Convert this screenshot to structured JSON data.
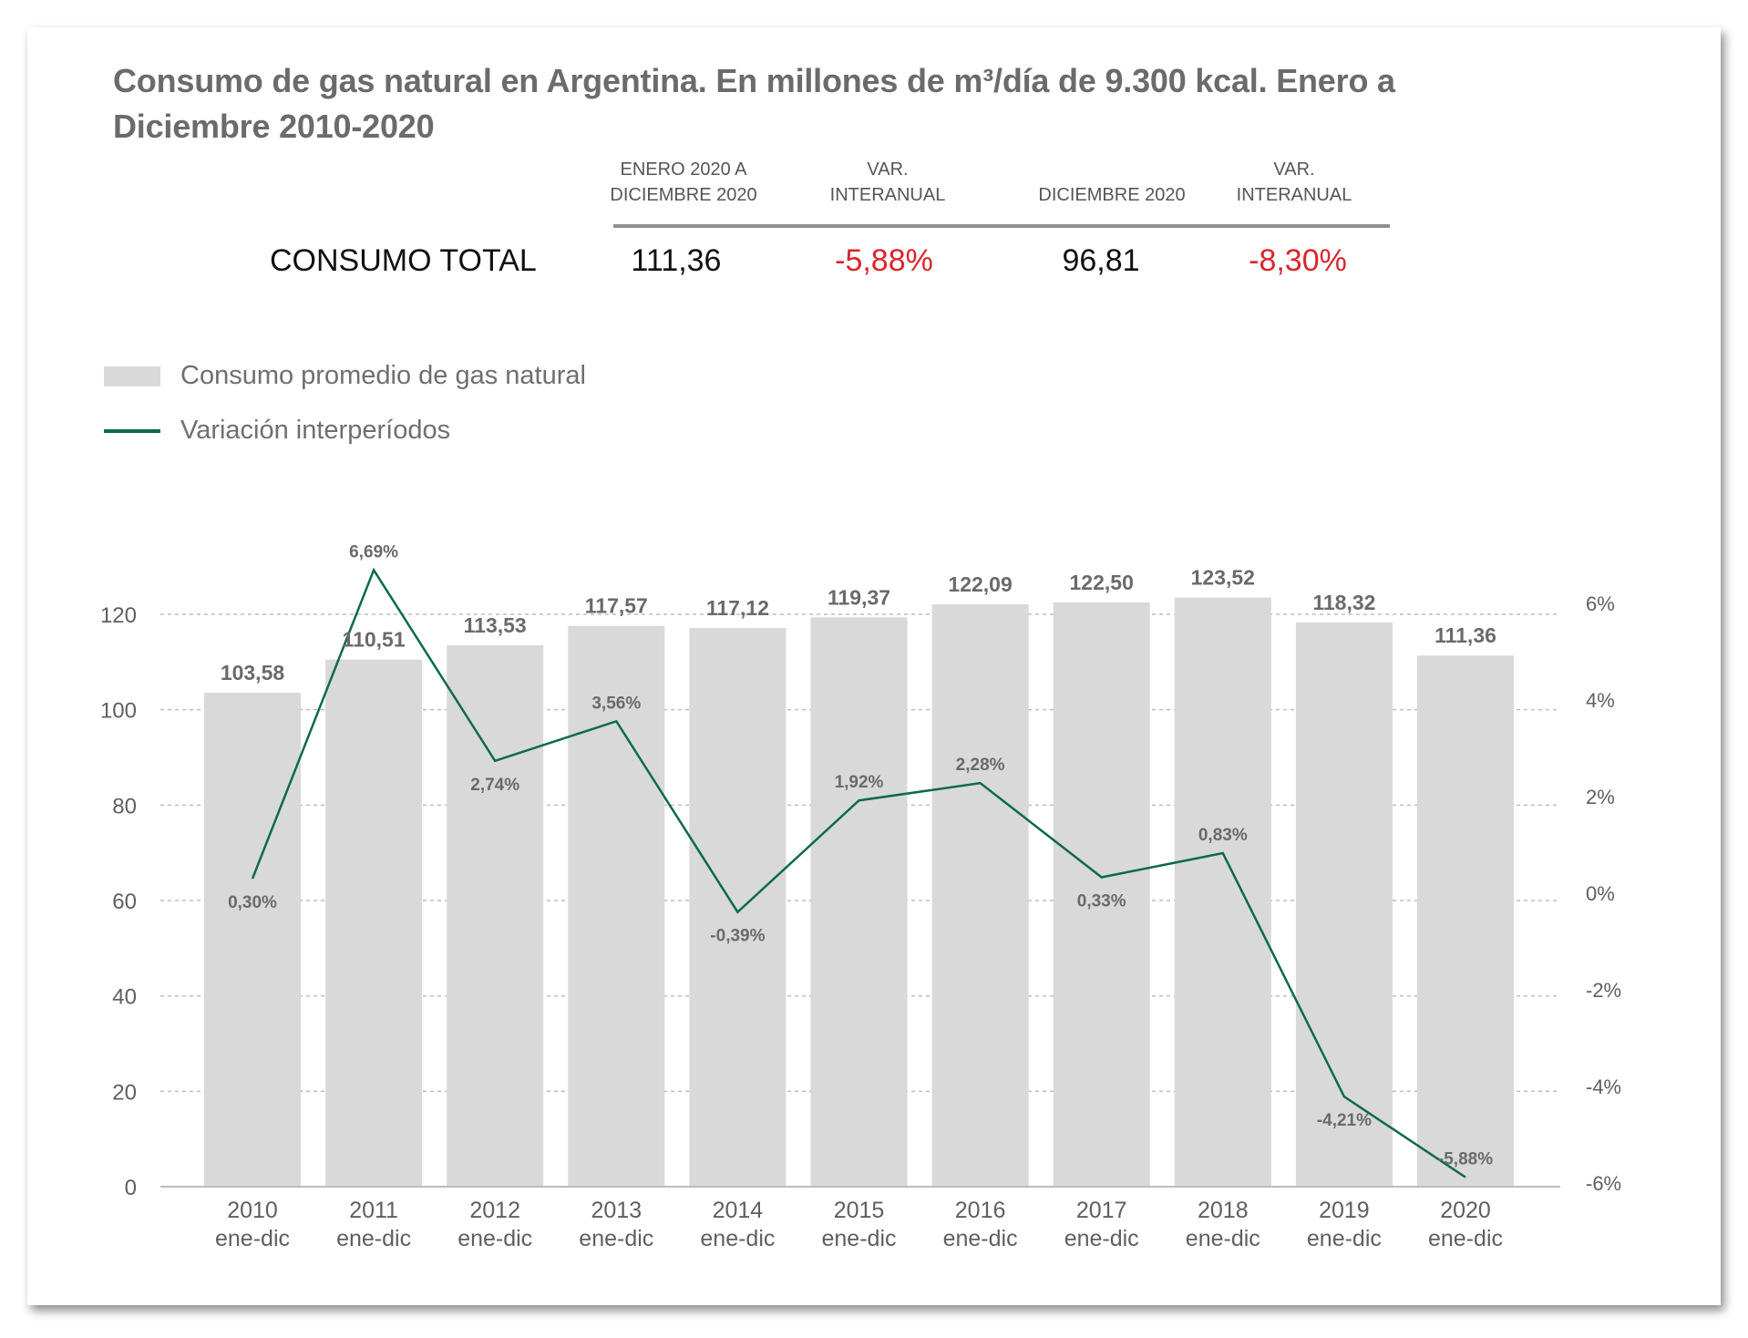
{
  "title": "Consumo de gas natural en Argentina. En millones de m³/día de 9.300 kcal. Enero a Diciembre 2010-2020",
  "summary": {
    "headers": [
      "ENERO 2020 A\nDICIEMBRE 2020",
      "VAR.\nINTERANUAL",
      "DICIEMBRE 2020",
      "VAR.\nINTERANUAL"
    ],
    "row_label": "CONSUMO TOTAL",
    "values": [
      "111,36",
      "-5,88%",
      "96,81",
      "-8,30%"
    ]
  },
  "legend": {
    "bar": "Consumo promedio de gas natural",
    "line": "Variación interperíodos"
  },
  "colors": {
    "bar": "#d9d9d9",
    "line": "#0b6b46",
    "negative": "#d9262c",
    "title": "#6b6b6b",
    "axis_text": "#5f5f5f"
  },
  "chart_data": {
    "type": "bar",
    "categories": [
      "2010\nene-dic",
      "2011\nene-dic",
      "2012\nene-dic",
      "2013\nene-dic",
      "2014\nene-dic",
      "2015\nene-dic",
      "2016\nene-dic",
      "2017\nene-dic",
      "2018\nene-dic",
      "2019\nene-dic",
      "2020\nene-dic"
    ],
    "series": [
      {
        "name": "Consumo promedio de gas natural",
        "type": "bar",
        "axis": "left",
        "values": [
          103.58,
          110.51,
          113.53,
          117.57,
          117.12,
          119.37,
          122.09,
          122.5,
          123.52,
          118.32,
          111.36
        ],
        "labels": [
          "103,58",
          "110,51",
          "113,53",
          "117,57",
          "117,12",
          "119,37",
          "122,09",
          "122,50",
          "123,52",
          "118,32",
          "111,36"
        ]
      },
      {
        "name": "Variación interperíodos",
        "type": "line",
        "axis": "right",
        "values": [
          0.3,
          6.69,
          2.74,
          3.56,
          -0.39,
          1.92,
          2.28,
          0.33,
          0.83,
          -4.21,
          -5.88
        ],
        "labels": [
          "0,30%",
          "6,69%",
          "2,74%",
          "3,56%",
          "-0,39%",
          "1,92%",
          "2,28%",
          "0,33%",
          "0,83%",
          "-4,21%",
          "-5,88%"
        ]
      }
    ],
    "y_left": {
      "ylim": [
        0,
        120
      ],
      "ticks": [
        "0",
        "20",
        "40",
        "60",
        "80",
        "100",
        "120"
      ]
    },
    "y_right": {
      "ylim": [
        -6,
        6
      ],
      "ticks": [
        "-6%",
        "-4%",
        "-2%",
        "0%",
        "2%",
        "4%",
        "6%"
      ]
    },
    "grid": true,
    "legend_position": "top-left"
  }
}
